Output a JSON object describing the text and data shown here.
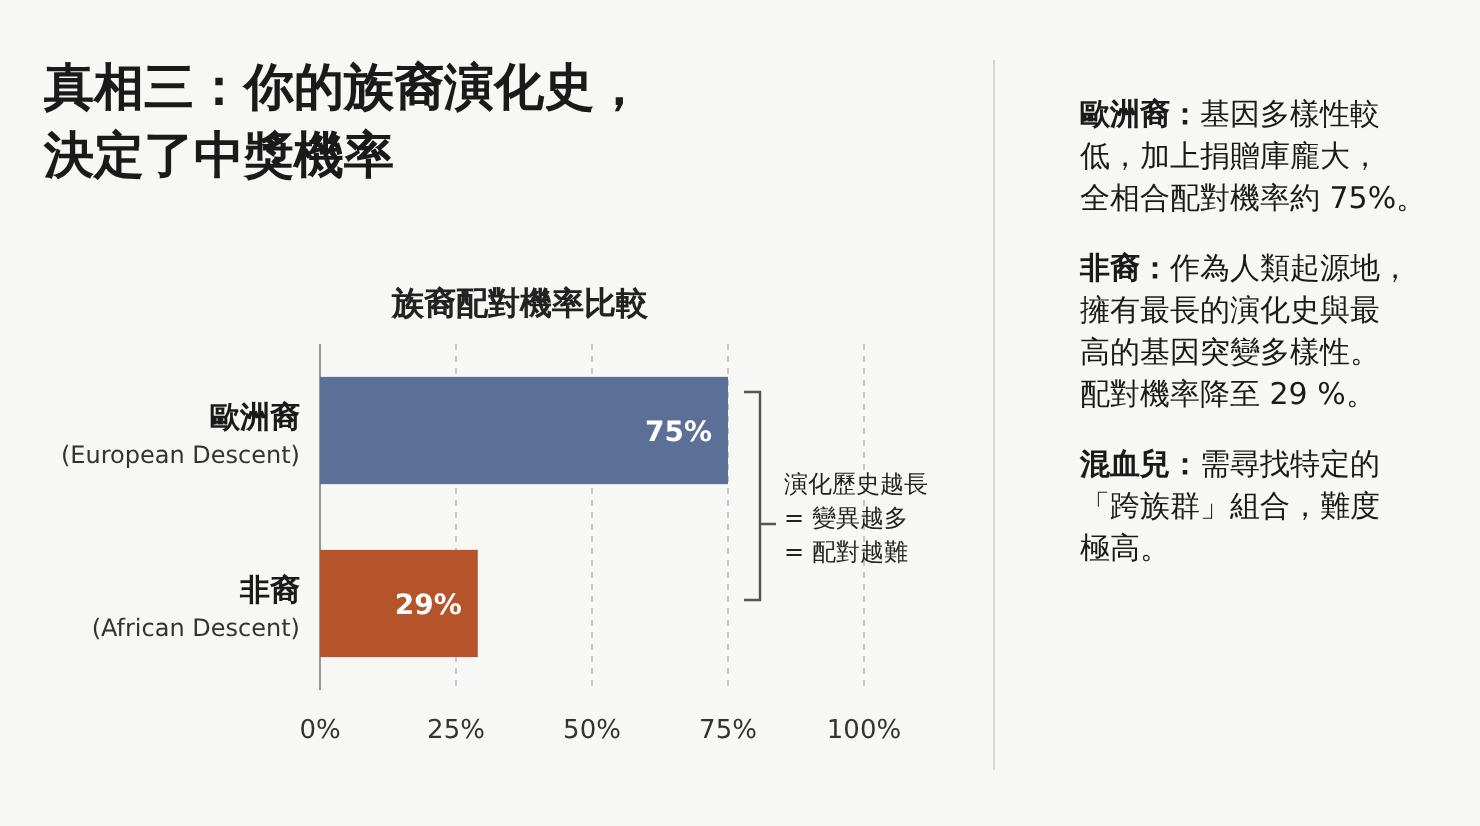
{
  "chart_data": {
    "type": "bar",
    "orientation": "horizontal",
    "title": "真相三：你的族裔演化史，決定了中獎機率",
    "subtitle": "族裔配對機率比較",
    "categories": [
      "歐洲裔\n(European Descent)",
      "非裔\n(African Descent)"
    ],
    "values": [
      75,
      29
    ],
    "colors": [
      "#5b6f97",
      "#b5532a"
    ],
    "value_labels": [
      "75%",
      "29%"
    ],
    "xlim": [
      0,
      100
    ],
    "xticks": [
      {
        "value": 0,
        "label": "0%"
      },
      {
        "value": 25,
        "label": "25%"
      },
      {
        "value": 50,
        "label": "50%"
      },
      {
        "value": 75,
        "label": "75%"
      },
      {
        "value": 100,
        "label": "100%"
      }
    ],
    "grid": "x",
    "annotations": [
      "演化歷史越長\n= 變異越多\n= 配對越難",
      "歐洲裔：基因多樣性較低，加上捐贈庫龐大，全相合配對機率約 75%。",
      "非裔：作為人類起源地，擁有最長的演化史與最高的基因突變多樣性。配對機率降至 29 %。",
      "混血兒：需尋找特定的「跨族群」組合，難度極高。"
    ]
  }
}
